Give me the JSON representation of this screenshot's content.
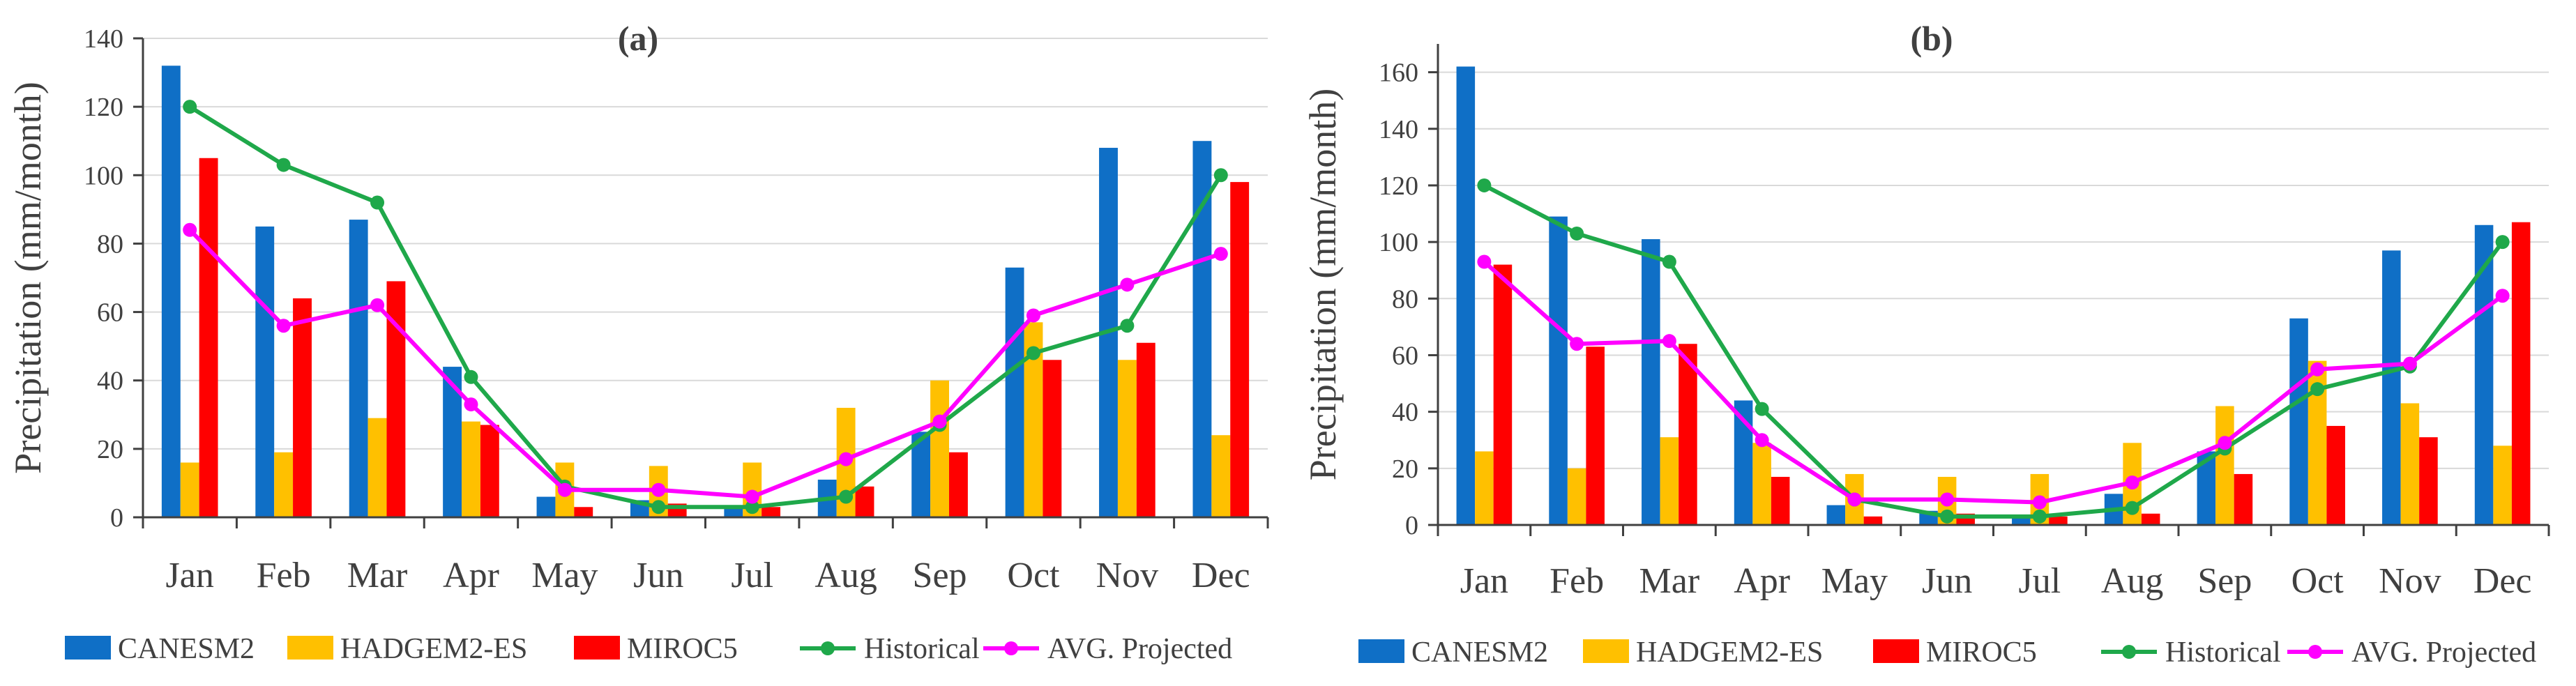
{
  "colors": {
    "CANESM2": "#0f6fc6",
    "HADGEM2-ES": "#ffc000",
    "MIROC5": "#ff0000",
    "Historical": "#1fa84a",
    "AVG. Projected": "#ff00ff",
    "axis": "#404040",
    "grid": "#d9d9d9"
  },
  "chart_data": [
    {
      "type": "bar",
      "title": "(a)",
      "xlabel": "",
      "ylabel": "Precipitation (mm/month)",
      "ylim": [
        0,
        140
      ],
      "yticks": [
        0,
        20,
        40,
        60,
        80,
        100,
        120,
        140
      ],
      "categories": [
        "Jan",
        "Feb",
        "Mar",
        "Apr",
        "May",
        "Jun",
        "Jul",
        "Aug",
        "Sep",
        "Oct",
        "Nov",
        "Dec"
      ],
      "series": [
        {
          "name": "CANESM2",
          "kind": "bar",
          "values": [
            132,
            85,
            87,
            44,
            6,
            5,
            3,
            11,
            25,
            73,
            108,
            110
          ]
        },
        {
          "name": "HADGEM2-ES",
          "kind": "bar",
          "values": [
            16,
            19,
            29,
            28,
            16,
            15,
            16,
            32,
            40,
            57,
            46,
            24
          ]
        },
        {
          "name": "MIROC5",
          "kind": "bar",
          "values": [
            105,
            64,
            69,
            27,
            3,
            4,
            3,
            9,
            19,
            46,
            51,
            98
          ]
        },
        {
          "name": "Historical",
          "kind": "line",
          "values": [
            120,
            103,
            92,
            41,
            9,
            3,
            3,
            6,
            27,
            48,
            56,
            100
          ]
        },
        {
          "name": "AVG. Projected",
          "kind": "line",
          "values": [
            84,
            56,
            62,
            33,
            8,
            8,
            6,
            17,
            28,
            59,
            68,
            77
          ]
        }
      ],
      "legend": [
        "CANESM2",
        "HADGEM2-ES",
        "MIROC5",
        "Historical",
        "AVG. Projected"
      ],
      "grid": true
    },
    {
      "type": "bar",
      "title": "(b)",
      "xlabel": "",
      "ylabel": "Precipitation (mm/month)",
      "ylim": [
        0,
        170
      ],
      "yticks": [
        0,
        20,
        40,
        60,
        80,
        100,
        120,
        140,
        160
      ],
      "categories": [
        "Jan",
        "Feb",
        "Mar",
        "Apr",
        "May",
        "Jun",
        "Jul",
        "Aug",
        "Sep",
        "Oct",
        "Nov",
        "Dec"
      ],
      "series": [
        {
          "name": "CANESM2",
          "kind": "bar",
          "values": [
            162,
            109,
            101,
            44,
            7,
            5,
            3,
            11,
            26,
            73,
            97,
            106
          ]
        },
        {
          "name": "HADGEM2-ES",
          "kind": "bar",
          "values": [
            26,
            20,
            31,
            29,
            18,
            17,
            18,
            29,
            42,
            58,
            43,
            28
          ]
        },
        {
          "name": "MIROC5",
          "kind": "bar",
          "values": [
            92,
            63,
            64,
            17,
            3,
            4,
            3,
            4,
            18,
            35,
            31,
            107
          ]
        },
        {
          "name": "Historical",
          "kind": "line",
          "values": [
            120,
            103,
            93,
            41,
            9,
            3,
            3,
            6,
            27,
            48,
            56,
            100
          ]
        },
        {
          "name": "AVG. Projected",
          "kind": "line",
          "values": [
            93,
            64,
            65,
            30,
            9,
            9,
            8,
            15,
            29,
            55,
            57,
            81
          ]
        }
      ],
      "legend": [
        "CANESM2",
        "HADGEM2-ES",
        "MIROC5",
        "Historical",
        "AVG. Projected"
      ],
      "grid": true
    }
  ]
}
